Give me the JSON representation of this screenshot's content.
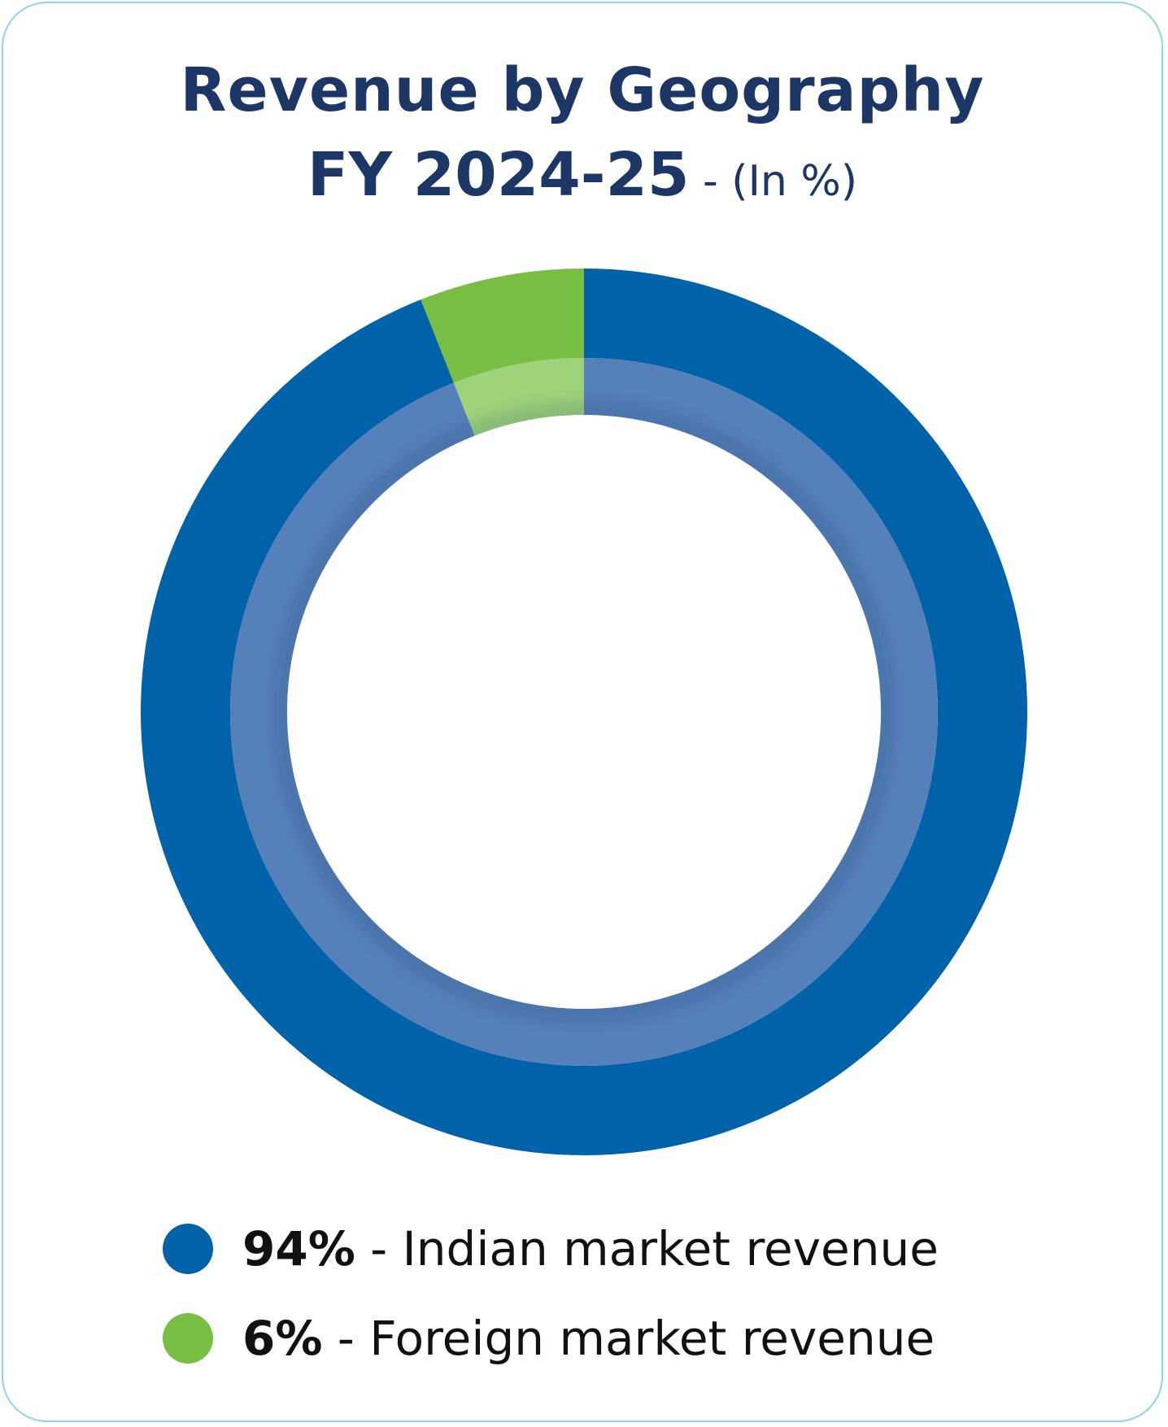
{
  "title": {
    "line1": "Revenue by Geography",
    "line2_main": "FY 2024-25",
    "line2_suffix": " - (In %)"
  },
  "colors": {
    "indian": "#0062a8",
    "indian_inner": "#5680ba",
    "foreign": "#77be43",
    "foreign_inner": "#9ed27b",
    "title": "#1c3666",
    "card_border": "#8fd3ef"
  },
  "chart_data": {
    "type": "pie",
    "subtype": "donut",
    "title": "Revenue by Geography FY 2024-25 - (In %)",
    "series": [
      {
        "name": "Indian market revenue",
        "value": 94,
        "label": "94%",
        "color": "#0062a8"
      },
      {
        "name": "Foreign market revenue",
        "value": 6,
        "label": "6%",
        "color": "#77be43"
      }
    ],
    "legend_placement": "bottom"
  },
  "legend": [
    {
      "pct": "94%",
      "sep": " - ",
      "label": "Indian market revenue"
    },
    {
      "pct": "6%",
      "sep": " - ",
      "label": "Foreign market revenue"
    }
  ]
}
